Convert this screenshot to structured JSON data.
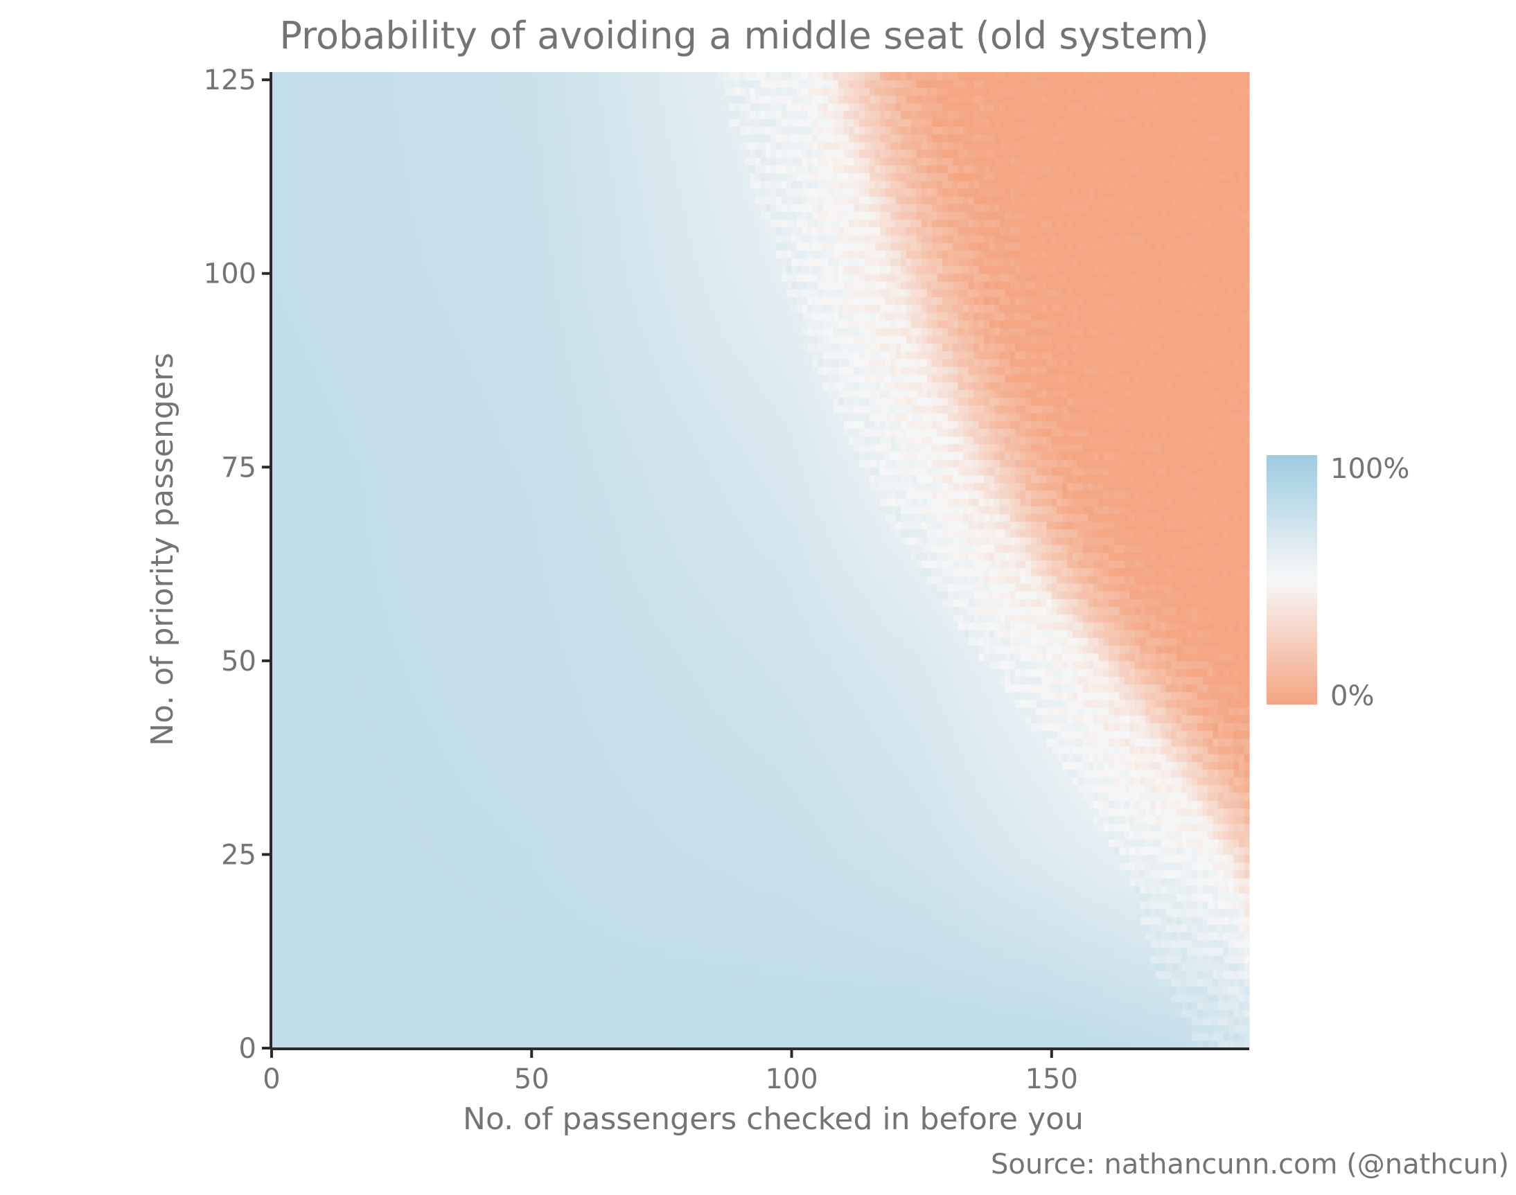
{
  "chart_data": {
    "type": "heatmap",
    "title": "Probability of avoiding a middle seat (old system)",
    "xlabel": "No. of passengers checked in before you",
    "ylabel": "No. of priority passengers",
    "caption": "Source: nathancunn.com (@nathcun)",
    "x_ticks": [
      0,
      50,
      100,
      150
    ],
    "y_ticks": [
      0,
      25,
      50,
      75,
      100,
      125
    ],
    "xlim": [
      0,
      188
    ],
    "ylim": [
      0,
      126
    ],
    "grid": false,
    "value_description": "probability (0 to 1) of avoiding a middle seat, estimated from colour",
    "legend": {
      "position": "right",
      "labels": [
        "100%",
        "0%"
      ],
      "colors": {
        "high": "#9ccbe0",
        "mid": "#f7f7f7",
        "low": "#f4a582"
      }
    },
    "frontier": {
      "description": "x value where probability crosses 50% for each number of priority passengers (approx.)",
      "y": [
        0,
        10,
        20,
        30,
        40,
        50,
        60,
        70,
        80,
        90,
        100,
        110,
        120,
        126
      ],
      "x_at_50pct": [
        198,
        190,
        186,
        178,
        168,
        157,
        146,
        137,
        130,
        123,
        118,
        113,
        108,
        106
      ]
    },
    "values_sample": {
      "x": [
        0,
        50,
        100,
        125,
        150,
        175,
        188
      ],
      "rows": [
        {
          "y": 0,
          "values": [
            0.8,
            0.8,
            0.81,
            0.82,
            0.82,
            0.78,
            0.72
          ]
        },
        {
          "y": 25,
          "values": [
            0.8,
            0.79,
            0.76,
            0.72,
            0.64,
            0.56,
            0.48
          ]
        },
        {
          "y": 50,
          "values": [
            0.8,
            0.78,
            0.72,
            0.66,
            0.54,
            0.34,
            0.15
          ]
        },
        {
          "y": 75,
          "values": [
            0.8,
            0.77,
            0.67,
            0.54,
            0.3,
            0.06,
            0.0
          ]
        },
        {
          "y": 100,
          "values": [
            0.79,
            0.76,
            0.6,
            0.42,
            0.1,
            0.0,
            0.0
          ]
        },
        {
          "y": 125,
          "values": [
            0.79,
            0.75,
            0.56,
            0.34,
            0.05,
            0.0,
            0.0
          ]
        }
      ]
    }
  }
}
